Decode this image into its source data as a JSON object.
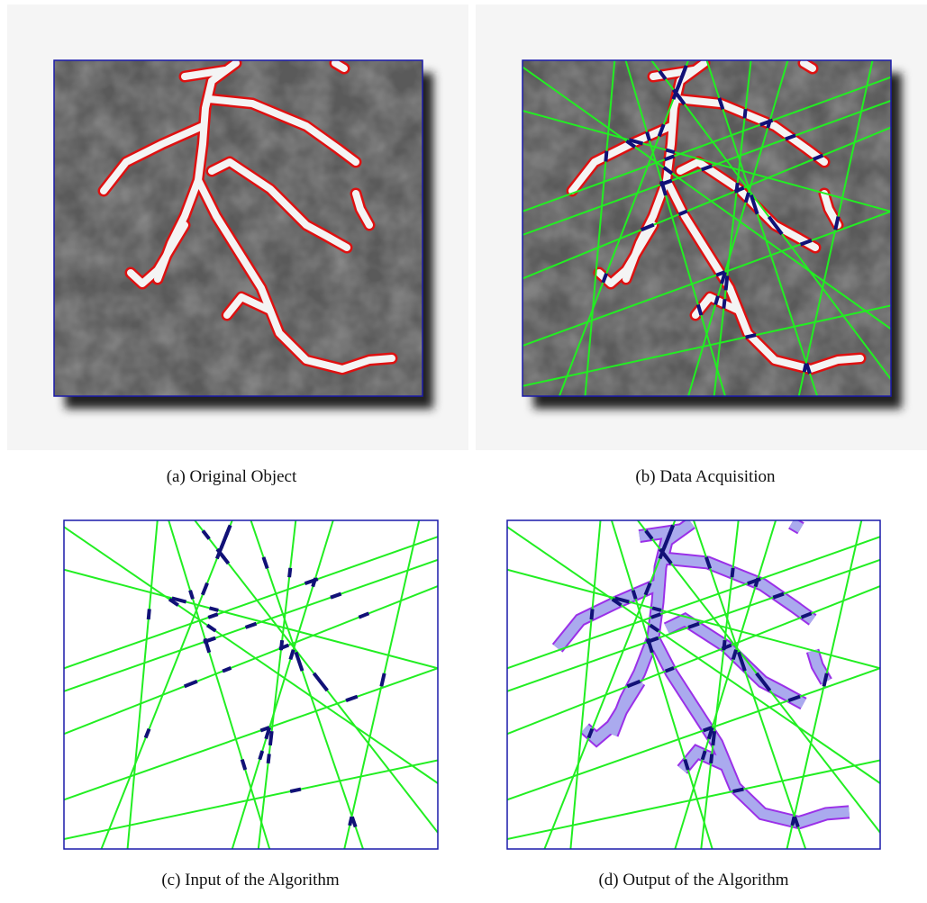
{
  "panels": [
    {
      "caption": "(a) Original Object"
    },
    {
      "caption": "(b) Data Acquisition"
    },
    {
      "caption": "(c) Input of the Algorithm"
    },
    {
      "caption": "(d) Output of the Algorithm"
    }
  ]
}
